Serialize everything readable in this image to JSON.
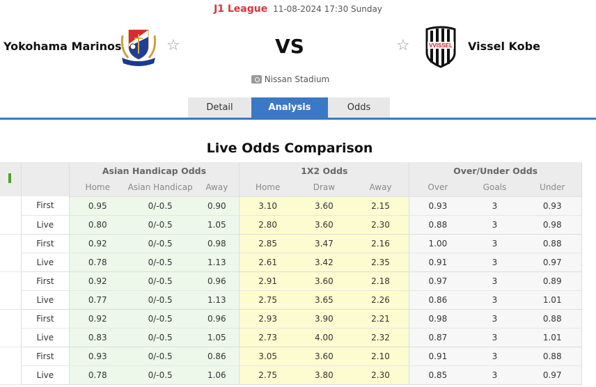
{
  "header": {
    "league": "J1 League",
    "datetime": "11-08-2024 17:30 Sunday",
    "vs": "VS",
    "venue": "Nissan Stadium"
  },
  "home_team": {
    "name": "Yokohama Marinos",
    "logo_text": "Yokohama F·Marinos",
    "favorite_icon": "star-outline-icon"
  },
  "away_team": {
    "name": "Vissel Kobe",
    "logo_text": "VISSEL",
    "favorite_icon": "star-outline-icon"
  },
  "tabs": [
    {
      "label": "Detail",
      "active": false
    },
    {
      "label": "Analysis",
      "active": true
    },
    {
      "label": "Odds",
      "active": false
    }
  ],
  "section_title": "Live Odds Comparison",
  "table": {
    "groups": [
      "Asian Handicap Odds",
      "1X2 Odds",
      "Over/Under Odds"
    ],
    "subheaders": [
      "Home",
      "Asian Handicap",
      "Away",
      "Home",
      "Draw",
      "Away",
      "Over",
      "Goals",
      "Under"
    ],
    "rows": [
      {
        "type": "First",
        "ah": [
          "0.95",
          "0/-0.5",
          "0.90"
        ],
        "x12": [
          "3.10",
          "3.60",
          "2.15"
        ],
        "ou": [
          "0.93",
          "3",
          "0.93"
        ]
      },
      {
        "type": "Live",
        "ah": [
          "0.80",
          "0/-0.5",
          "1.05"
        ],
        "x12": [
          "2.80",
          "3.60",
          "2.30"
        ],
        "ou": [
          "0.88",
          "3",
          "0.98"
        ]
      },
      {
        "type": "First",
        "ah": [
          "0.92",
          "0/-0.5",
          "0.98"
        ],
        "x12": [
          "2.85",
          "3.47",
          "2.16"
        ],
        "ou": [
          "1.00",
          "3",
          "0.88"
        ]
      },
      {
        "type": "Live",
        "ah": [
          "0.78",
          "0/-0.5",
          "1.13"
        ],
        "x12": [
          "2.61",
          "3.42",
          "2.35"
        ],
        "ou": [
          "0.91",
          "3",
          "0.97"
        ]
      },
      {
        "type": "First",
        "ah": [
          "0.92",
          "0/-0.5",
          "0.96"
        ],
        "x12": [
          "2.91",
          "3.60",
          "2.18"
        ],
        "ou": [
          "0.97",
          "3",
          "0.89"
        ]
      },
      {
        "type": "Live",
        "ah": [
          "0.77",
          "0/-0.5",
          "1.13"
        ],
        "x12": [
          "2.75",
          "3.65",
          "2.26"
        ],
        "ou": [
          "0.86",
          "3",
          "1.01"
        ]
      },
      {
        "type": "First",
        "ah": [
          "0.92",
          "0/-0.5",
          "0.96"
        ],
        "x12": [
          "2.93",
          "3.90",
          "2.21"
        ],
        "ou": [
          "0.98",
          "3",
          "0.88"
        ]
      },
      {
        "type": "Live",
        "ah": [
          "0.83",
          "0/-0.5",
          "1.05"
        ],
        "x12": [
          "2.73",
          "4.00",
          "2.32"
        ],
        "ou": [
          "0.87",
          "3",
          "1.01"
        ]
      },
      {
        "type": "First",
        "ah": [
          "0.93",
          "0/-0.5",
          "0.86"
        ],
        "x12": [
          "3.05",
          "3.60",
          "2.10"
        ],
        "ou": [
          "0.91",
          "3",
          "0.88"
        ]
      },
      {
        "type": "Live",
        "ah": [
          "0.78",
          "0/-0.5",
          "1.06"
        ],
        "x12": [
          "2.75",
          "3.80",
          "2.30"
        ],
        "ou": [
          "0.85",
          "3",
          "0.97"
        ]
      }
    ]
  },
  "colors": {
    "league_red": "#d9343a",
    "tab_active_blue": "#3b78c6",
    "ah_bg_green": "#edf8ea",
    "x12_bg_yellow": "#fdfbd0",
    "ou_bg_grey": "#f7f7f7"
  }
}
